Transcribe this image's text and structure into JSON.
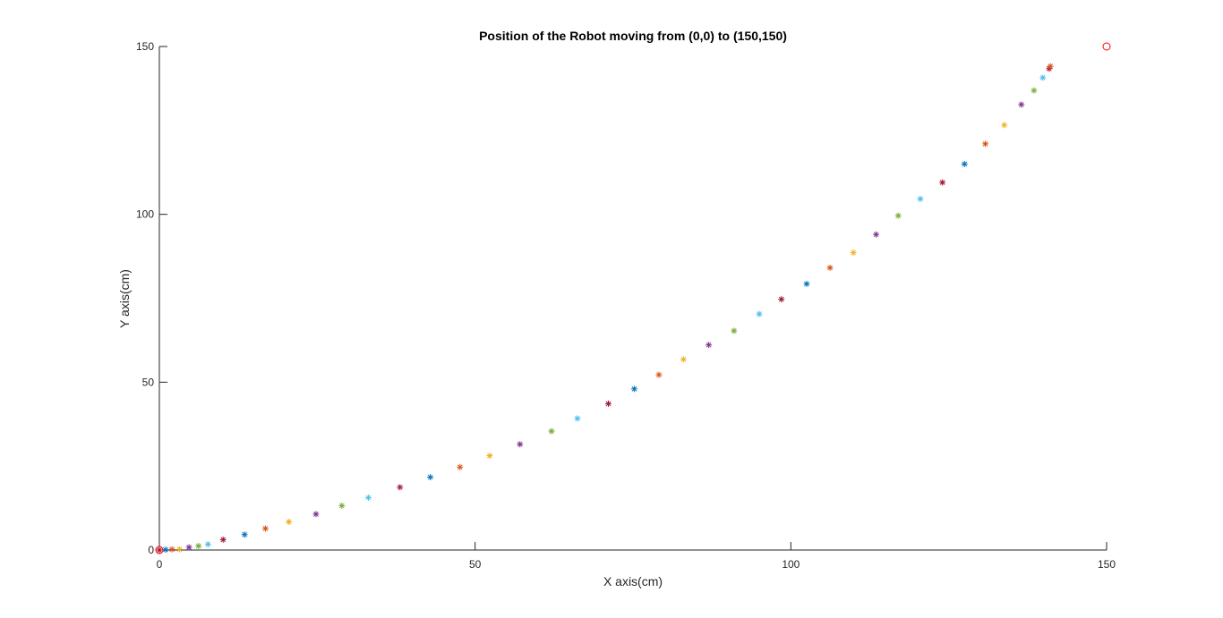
{
  "chart_data": {
    "type": "scatter",
    "title": "Position of the Robot moving from (0,0) to (150,150)",
    "xlabel": "X axis(cm)",
    "ylabel": "Y axis(cm)",
    "xlim": [
      0,
      150
    ],
    "ylim": [
      0,
      150
    ],
    "xticks": [
      0,
      50,
      100,
      150
    ],
    "yticks": [
      0,
      50,
      100,
      150
    ],
    "xtick_labels": [
      "0",
      "50",
      "100",
      "150"
    ],
    "ytick_labels": [
      "0",
      "50",
      "100",
      "150"
    ],
    "grid": false,
    "legend": "none",
    "marker_colors": [
      "#0072BD",
      "#D95319",
      "#EDB120",
      "#7E2F8E",
      "#77AC30",
      "#4DBEEE",
      "#A2142F"
    ],
    "series": [
      {
        "marker": "asterisk",
        "points": [
          {
            "x": 0.0,
            "y": 0.0,
            "color": "#A2142F"
          },
          {
            "x": 1.0,
            "y": 0.1,
            "color": "#0072BD"
          },
          {
            "x": 2.0,
            "y": 0.2,
            "color": "#D95319"
          },
          {
            "x": 3.2,
            "y": 0.2,
            "color": "#EDB120"
          },
          {
            "x": 4.7,
            "y": 0.8,
            "color": "#7E2F8E"
          },
          {
            "x": 6.2,
            "y": 1.2,
            "color": "#77AC30"
          },
          {
            "x": 7.7,
            "y": 1.7,
            "color": "#4DBEEE"
          },
          {
            "x": 10.1,
            "y": 3.1,
            "color": "#A2142F"
          },
          {
            "x": 13.5,
            "y": 4.6,
            "color": "#0072BD"
          },
          {
            "x": 16.8,
            "y": 6.4,
            "color": "#D95319"
          },
          {
            "x": 20.5,
            "y": 8.4,
            "color": "#EDB120"
          },
          {
            "x": 24.8,
            "y": 10.7,
            "color": "#7E2F8E"
          },
          {
            "x": 28.9,
            "y": 13.2,
            "color": "#77AC30"
          },
          {
            "x": 33.1,
            "y": 15.6,
            "color": "#4DBEEE"
          },
          {
            "x": 38.1,
            "y": 18.7,
            "color": "#A2142F"
          },
          {
            "x": 42.9,
            "y": 21.7,
            "color": "#0072BD"
          },
          {
            "x": 47.6,
            "y": 24.7,
            "color": "#D95319"
          },
          {
            "x": 52.3,
            "y": 28.1,
            "color": "#EDB120"
          },
          {
            "x": 57.1,
            "y": 31.5,
            "color": "#7E2F8E"
          },
          {
            "x": 62.1,
            "y": 35.4,
            "color": "#77AC30"
          },
          {
            "x": 66.2,
            "y": 39.2,
            "color": "#4DBEEE"
          },
          {
            "x": 71.1,
            "y": 43.6,
            "color": "#A2142F"
          },
          {
            "x": 75.2,
            "y": 48.0,
            "color": "#0072BD"
          },
          {
            "x": 79.1,
            "y": 52.2,
            "color": "#D95319"
          },
          {
            "x": 83.0,
            "y": 56.8,
            "color": "#EDB120"
          },
          {
            "x": 87.0,
            "y": 61.1,
            "color": "#7E2F8E"
          },
          {
            "x": 91.0,
            "y": 65.3,
            "color": "#77AC30"
          },
          {
            "x": 95.0,
            "y": 70.3,
            "color": "#4DBEEE"
          },
          {
            "x": 98.5,
            "y": 74.7,
            "color": "#A2142F"
          },
          {
            "x": 102.5,
            "y": 79.3,
            "color": "#0072BD"
          },
          {
            "x": 106.2,
            "y": 84.1,
            "color": "#D95319"
          },
          {
            "x": 109.9,
            "y": 88.6,
            "color": "#EDB120"
          },
          {
            "x": 113.5,
            "y": 94.0,
            "color": "#7E2F8E"
          },
          {
            "x": 117.0,
            "y": 99.6,
            "color": "#77AC30"
          },
          {
            "x": 120.5,
            "y": 104.6,
            "color": "#4DBEEE"
          },
          {
            "x": 124.0,
            "y": 109.5,
            "color": "#A2142F"
          },
          {
            "x": 127.5,
            "y": 115.0,
            "color": "#0072BD"
          },
          {
            "x": 130.8,
            "y": 121.0,
            "color": "#D95319"
          },
          {
            "x": 133.8,
            "y": 126.6,
            "color": "#EDB120"
          },
          {
            "x": 136.5,
            "y": 132.7,
            "color": "#7E2F8E"
          },
          {
            "x": 138.5,
            "y": 136.9,
            "color": "#77AC30"
          },
          {
            "x": 139.9,
            "y": 140.7,
            "color": "#4DBEEE"
          },
          {
            "x": 140.9,
            "y": 143.4,
            "color": "#A2142F"
          },
          {
            "x": 141.1,
            "y": 144.1,
            "color": "#D95319"
          }
        ]
      },
      {
        "marker": "circle",
        "points": [
          {
            "x": 0,
            "y": 0,
            "color": "#FF0000"
          },
          {
            "x": 150,
            "y": 150,
            "color": "#FF0000"
          }
        ]
      }
    ]
  }
}
